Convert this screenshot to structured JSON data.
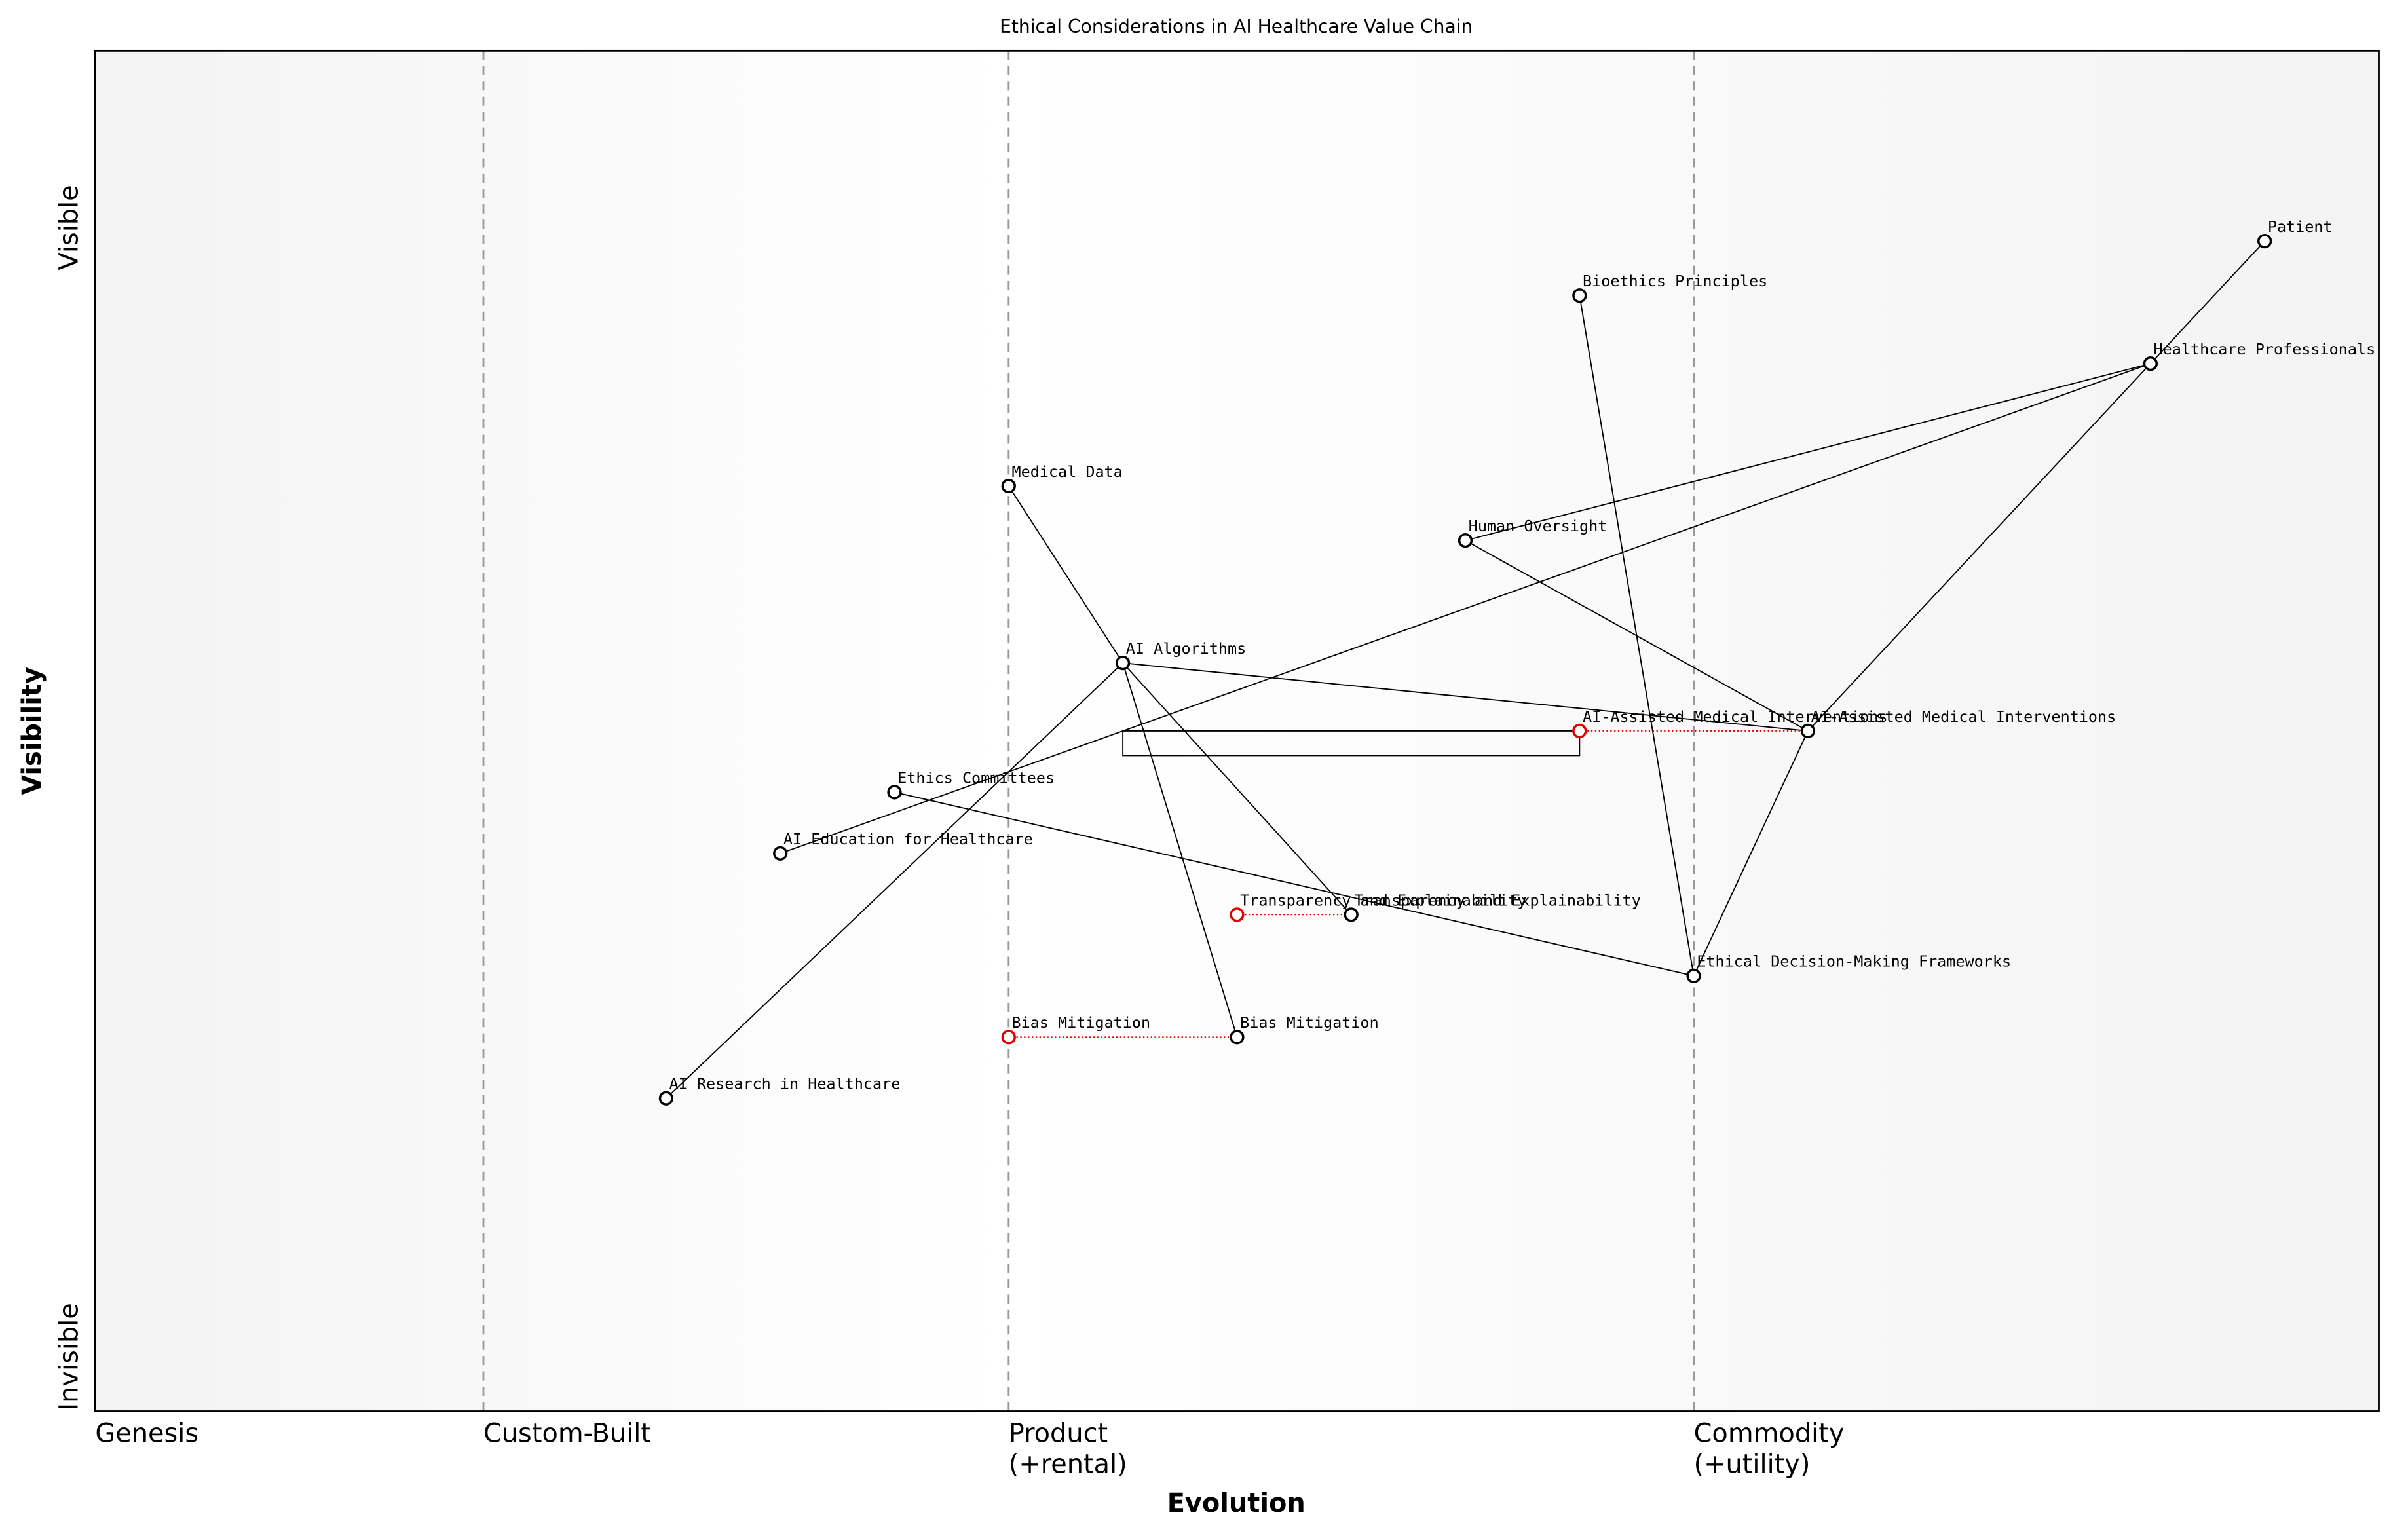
{
  "chart_data": {
    "type": "wardley",
    "title": "Ethical Considerations in AI Healthcare Value Chain",
    "xlabel": "Evolution",
    "ylabel": "Visibility",
    "xlim": [
      0,
      1
    ],
    "ylim": [
      0,
      1
    ],
    "xticks": [
      {
        "value": 0,
        "label": "Genesis"
      },
      {
        "value": 0.17,
        "label": "Custom-Built"
      },
      {
        "value": 0.4,
        "label": "Product\n(+rental)"
      },
      {
        "value": 0.7,
        "label": "Commodity\n(+utility)"
      }
    ],
    "yticks": [
      {
        "value": 0.04,
        "label": "Invisible"
      },
      {
        "value": 0.87,
        "label": "Visible"
      }
    ],
    "nodes": [
      {
        "name": "Patient",
        "x": 0.95,
        "y": 0.86
      },
      {
        "name": "Healthcare Professionals",
        "x": 0.9,
        "y": 0.77
      },
      {
        "name": "Bioethics Principles",
        "x": 0.65,
        "y": 0.82
      },
      {
        "name": "Medical Data",
        "x": 0.4,
        "y": 0.68
      },
      {
        "name": "Human Oversight",
        "x": 0.6,
        "y": 0.64
      },
      {
        "name": "AI Algorithms",
        "x": 0.45,
        "y": 0.55
      },
      {
        "name": "AI-Assisted Medical Interventions",
        "x": 0.75,
        "y": 0.5
      },
      {
        "name": "Ethics Committees",
        "x": 0.35,
        "y": 0.455
      },
      {
        "name": "AI Education for Healthcare",
        "x": 0.3,
        "y": 0.41
      },
      {
        "name": "Transparency and Explainability",
        "x": 0.55,
        "y": 0.365
      },
      {
        "name": "Ethical Decision-Making Frameworks",
        "x": 0.7,
        "y": 0.32
      },
      {
        "name": "Bias Mitigation",
        "x": 0.5,
        "y": 0.275
      },
      {
        "name": "AI Research in Healthcare",
        "x": 0.25,
        "y": 0.23
      }
    ],
    "links": [
      [
        0,
        1
      ],
      [
        1,
        4
      ],
      [
        1,
        8
      ],
      [
        1,
        6
      ],
      [
        2,
        10
      ],
      [
        3,
        5
      ],
      [
        4,
        6
      ],
      [
        5,
        6
      ],
      [
        5,
        12
      ],
      [
        5,
        9
      ],
      [
        5,
        11
      ],
      [
        7,
        10
      ],
      [
        10,
        6
      ]
    ],
    "evolve": [
      {
        "node": 6,
        "x": 0.65
      },
      {
        "node": 9,
        "x": 0.5
      },
      {
        "node": 11,
        "x": 0.4
      }
    ],
    "evolve_color": "#e00000",
    "pipelines": [
      {
        "x": [
          0.45,
          0.65
        ],
        "y": 0.5
      }
    ]
  }
}
